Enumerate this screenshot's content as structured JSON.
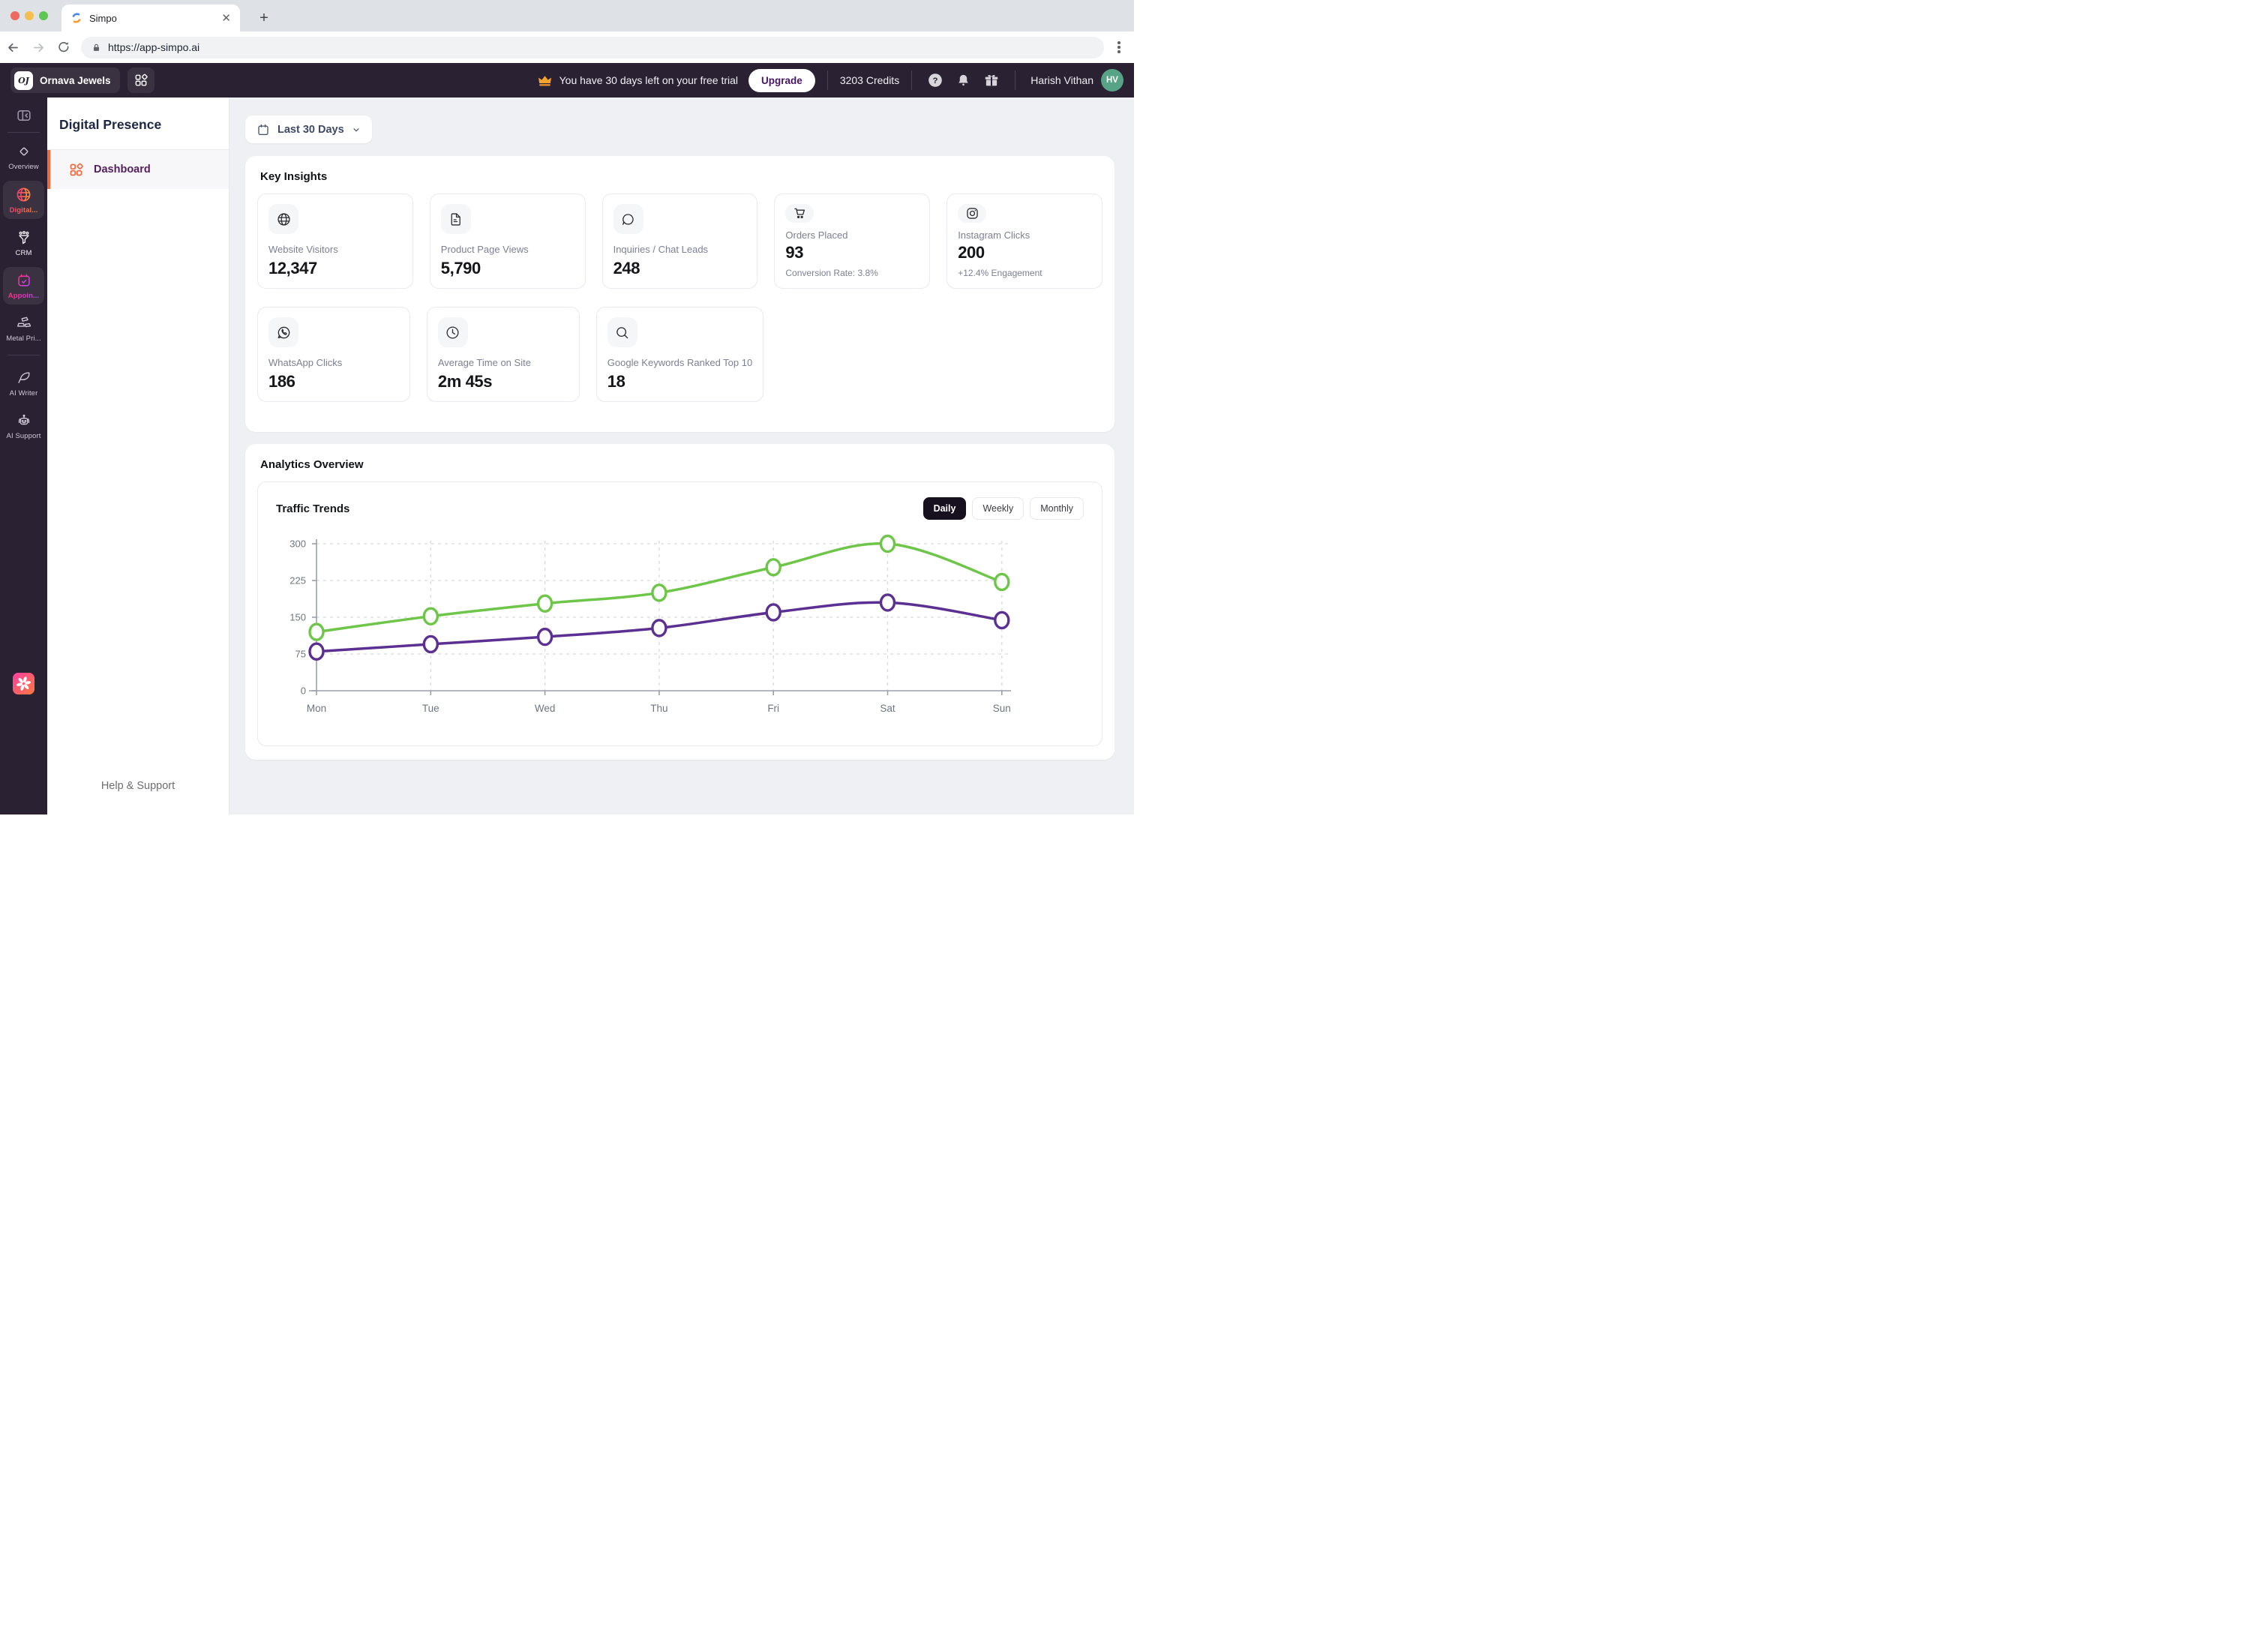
{
  "browser": {
    "tab_title": "Simpo",
    "url": "https://app-simpo.ai"
  },
  "header": {
    "org_name": "Ornava Jewels",
    "org_monogram": "OJ",
    "trial_text": "You have 30 days left on your free trial",
    "upgrade_label": "Upgrade",
    "credits": "3203 Credits",
    "user_name": "Harish Vithan",
    "user_initials": "HV"
  },
  "sidebar": {
    "items": [
      {
        "label": "Overview",
        "icon": "diamond-icon",
        "active": false
      },
      {
        "label": "Digital...",
        "icon": "globe-icon",
        "active": true
      },
      {
        "label": "CRM",
        "icon": "funnel-icon",
        "active": false
      },
      {
        "label": "Appoin...",
        "icon": "calendar-check-icon",
        "active": true
      },
      {
        "label": "Metal Pri...",
        "icon": "gold-bars-icon",
        "active": false
      },
      {
        "label": "AI Writer",
        "icon": "feather-icon",
        "active": false
      },
      {
        "label": "AI Support",
        "icon": "robot-icon",
        "active": false
      }
    ]
  },
  "subsidebar": {
    "title": "Digital Presence",
    "items": [
      {
        "label": "Dashboard",
        "icon": "dashboard-grid-icon",
        "active": true
      }
    ],
    "footer": "Help & Support"
  },
  "main": {
    "date_filter": "Last 30 Days",
    "key_insights": {
      "title": "Key Insights",
      "cards": [
        {
          "icon": "globe-icon",
          "label": "Website Visitors",
          "value": "12,347"
        },
        {
          "icon": "document-icon",
          "label": "Product Page Views",
          "value": "5,790"
        },
        {
          "icon": "chat-icon",
          "label": "Inquiries / Chat Leads",
          "value": "248"
        },
        {
          "icon": "cart-icon",
          "label": "Orders Placed",
          "value": "93",
          "sub": "Conversion Rate: 3.8%"
        },
        {
          "icon": "instagram-icon",
          "label": "Instagram Clicks",
          "value": "200",
          "sub": "+12.4% Engagement"
        },
        {
          "icon": "whatsapp-icon",
          "label": "WhatsApp Clicks",
          "value": "186"
        },
        {
          "icon": "clock-icon",
          "label": "Average Time on Site",
          "value": "2m 45s"
        },
        {
          "icon": "search-icon",
          "label": "Google Keywords Ranked Top 10",
          "value": "18"
        }
      ]
    },
    "analytics": {
      "title": "Analytics Overview",
      "chart_title": "Traffic Trends",
      "range_tabs": [
        {
          "label": "Daily",
          "active": true
        },
        {
          "label": "Weekly",
          "active": false
        },
        {
          "label": "Monthly",
          "active": false
        }
      ]
    }
  },
  "chart_data": {
    "type": "line",
    "title": "Traffic Trends",
    "categories": [
      "Mon",
      "Tue",
      "Wed",
      "Thu",
      "Fri",
      "Sat",
      "Sun"
    ],
    "series": [
      {
        "color": "#6ec649",
        "values": [
          120,
          152,
          178,
          200,
          252,
          300,
          222
        ]
      },
      {
        "color": "#5c2f92",
        "values": [
          80,
          95,
          110,
          128,
          160,
          180,
          144
        ]
      }
    ],
    "ylim": [
      0,
      300
    ],
    "yticks": [
      0,
      75,
      150,
      225,
      300
    ],
    "grid": true,
    "legend": "none"
  }
}
